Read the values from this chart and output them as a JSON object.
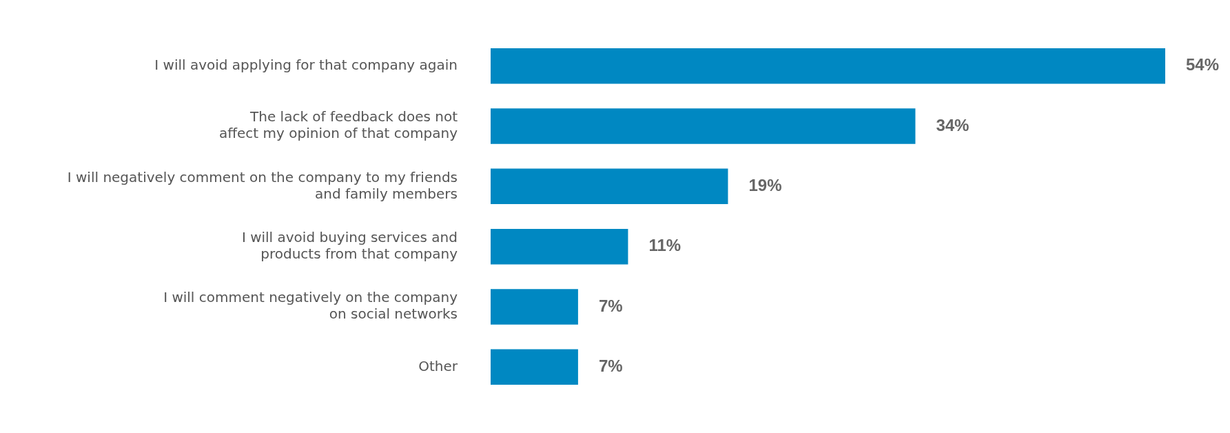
{
  "chart_data": {
    "type": "bar",
    "orientation": "horizontal",
    "categories": [
      "I will avoid applying for that company again",
      "The lack of feedback does not\naffect my opinion of that company",
      "I will negatively comment on the company to my friends\nand family members",
      "I will avoid buying services and\nproducts from that company",
      "I will comment negatively on the company\non social networks",
      "Other"
    ],
    "values": [
      54,
      34,
      19,
      11,
      7,
      7
    ],
    "value_labels": [
      "54%",
      "34%",
      "19%",
      "11%",
      "7%",
      "7%"
    ],
    "color": "#0088c2",
    "grid": false,
    "legend": false
  }
}
